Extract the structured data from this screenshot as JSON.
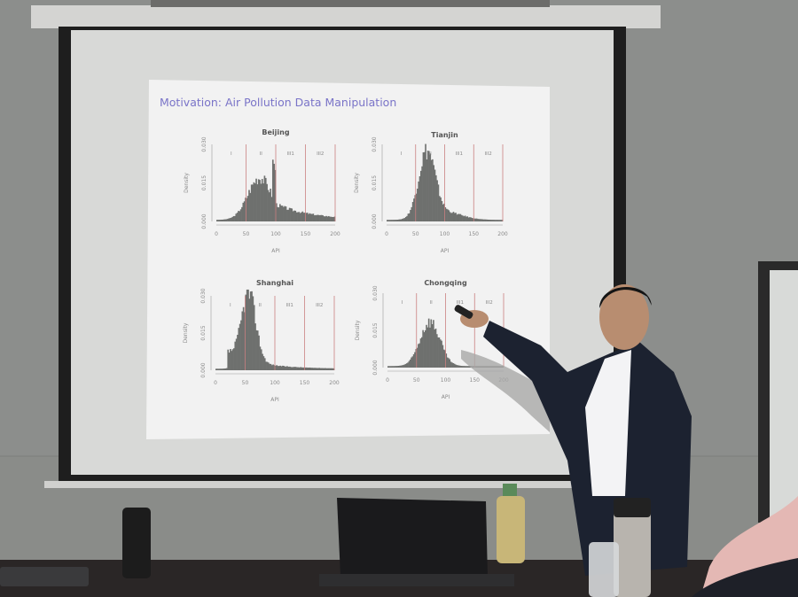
{
  "slide": {
    "title": "Motivation: Air Pollution Data Manipulation",
    "panels": [
      {
        "city": "Beijing",
        "xlabel": "API",
        "ylabel": "Density",
        "xticks": [
          "0",
          "50",
          "100",
          "150",
          "200"
        ],
        "yticks": [
          "0.000",
          "0.015",
          "0.030"
        ],
        "regions": [
          "I",
          "II",
          "III1",
          "III2"
        ]
      },
      {
        "city": "Tianjin",
        "xlabel": "API",
        "ylabel": "Density",
        "xticks": [
          "0",
          "50",
          "100",
          "150",
          "200"
        ],
        "yticks": [
          "0.000",
          "0.015",
          "0.030"
        ],
        "regions": [
          "I",
          "II",
          "III1",
          "III2"
        ]
      },
      {
        "city": "Shanghai",
        "xlabel": "API",
        "ylabel": "Density",
        "xticks": [
          "0",
          "50",
          "100",
          "150",
          "200"
        ],
        "yticks": [
          "0.000",
          "0.015",
          "0.030"
        ],
        "regions": [
          "I",
          "II",
          "III1",
          "III2"
        ]
      },
      {
        "city": "Chongqing",
        "xlabel": "API",
        "ylabel": "Density",
        "xticks": [
          "0",
          "50",
          "100",
          "150",
          "200"
        ],
        "yticks": [
          "0.000",
          "0.015",
          "0.030"
        ],
        "regions": [
          "I",
          "II",
          "III1",
          "III2"
        ]
      }
    ]
  },
  "colors": {
    "wall": "#8c8e8c",
    "screen": "#dcdcda",
    "slide": "#f2f2f2",
    "title": "#7a74c8",
    "bars": "#6e706e",
    "lines": "#c98080",
    "suit": "#1c2230"
  }
}
